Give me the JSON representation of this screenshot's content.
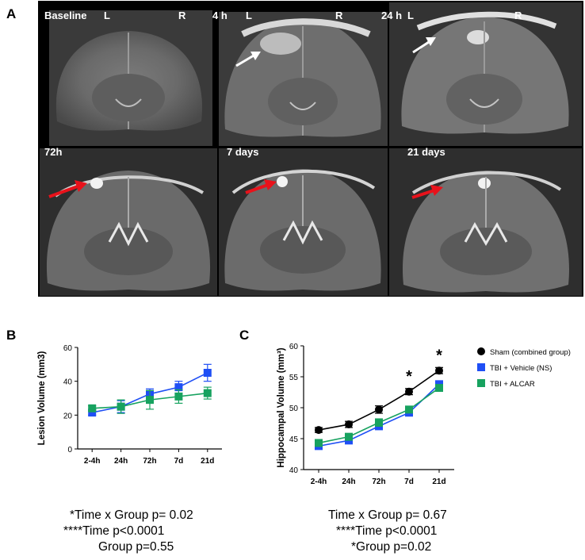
{
  "panel_a": {
    "label": "A",
    "tiles": [
      {
        "time": "Baseline",
        "left": "L",
        "right": "R"
      },
      {
        "time": "4 h",
        "left": "L",
        "right": "R"
      },
      {
        "time": "24 h",
        "left": "L",
        "right": "R"
      },
      {
        "time": "72h",
        "left": "",
        "right": ""
      },
      {
        "time": "7 days",
        "left": "",
        "right": ""
      },
      {
        "time": "21 days",
        "left": "",
        "right": ""
      }
    ],
    "arrow_colors": {
      "early": "#ffffff",
      "late": "#e8121b"
    }
  },
  "panel_b": {
    "label": "B",
    "stats": [
      "*Time  x Group p= 0.02",
      "****Time p<0.0001",
      "Group p=0.55"
    ]
  },
  "panel_c": {
    "label": "C",
    "stats": [
      "Time  x Group p= 0.67",
      "****Time p<0.0001",
      "*Group p=0.02"
    ],
    "significance": [
      "*",
      "*"
    ]
  },
  "chart_data": [
    {
      "type": "line",
      "panel": "B",
      "title": "",
      "xlabel": "",
      "ylabel": "Lesion Volume (mm3)",
      "categories": [
        "2-4h",
        "24h",
        "72h",
        "7d",
        "21d"
      ],
      "ylim": [
        0,
        60
      ],
      "yticks": [
        0,
        20,
        40,
        60
      ],
      "series": [
        {
          "name": "TBI + Vehicle (NS)",
          "color": "#1f4ff5",
          "marker": "square",
          "values": [
            21.5,
            25.0,
            32.5,
            36.5,
            45.0
          ],
          "errors": [
            1.5,
            3.5,
            3.0,
            3.5,
            5.0
          ]
        },
        {
          "name": "TBI + ALCAR",
          "color": "#17a25f",
          "marker": "square",
          "values": [
            24.0,
            25.0,
            29.0,
            31.0,
            33.0
          ],
          "errors": [
            1.5,
            4.0,
            5.5,
            4.0,
            3.5
          ]
        }
      ]
    },
    {
      "type": "line",
      "panel": "C",
      "title": "",
      "xlabel": "",
      "ylabel": "Hippocampal Volume (mm³)",
      "categories": [
        "2-4h",
        "24h",
        "72h",
        "7d",
        "21d"
      ],
      "ylim": [
        40,
        60
      ],
      "yticks": [
        40,
        45,
        50,
        55,
        60
      ],
      "legend_position": "right",
      "series": [
        {
          "name": "Sham (combined group)",
          "color": "#000000",
          "marker": "circle",
          "values": [
            46.4,
            47.3,
            49.7,
            52.6,
            56.0
          ],
          "errors": [
            0.4,
            0.5,
            0.6,
            0.5,
            0.5
          ]
        },
        {
          "name": "TBI + Vehicle (NS)",
          "color": "#1f4ff5",
          "marker": "square",
          "values": [
            43.8,
            44.7,
            47.0,
            49.2,
            53.8
          ],
          "errors": [
            0.4,
            0.4,
            0.5,
            0.5,
            0.5
          ]
        },
        {
          "name": "TBI + ALCAR",
          "color": "#17a25f",
          "marker": "square",
          "values": [
            44.3,
            45.3,
            47.6,
            49.7,
            53.2
          ],
          "errors": [
            0.5,
            0.5,
            0.6,
            0.5,
            0.5
          ]
        }
      ]
    }
  ]
}
